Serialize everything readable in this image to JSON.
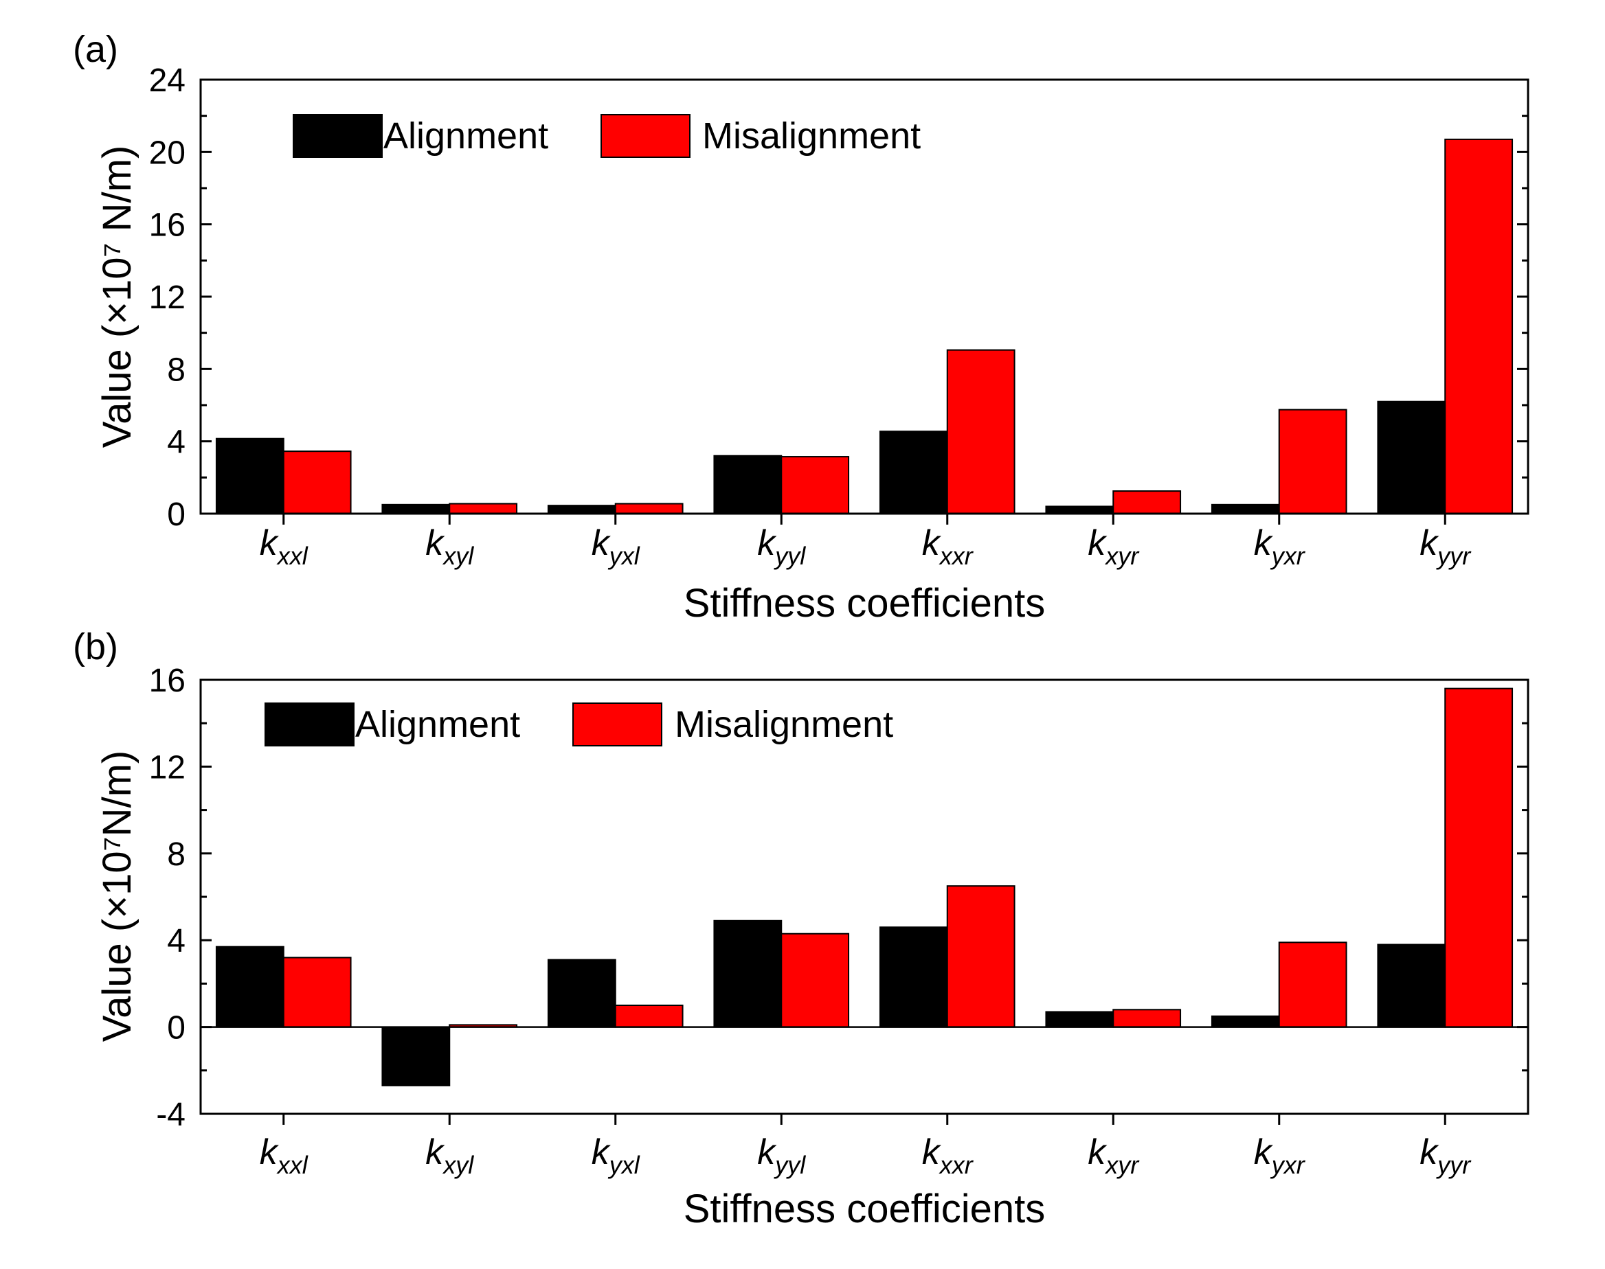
{
  "colors": {
    "alignment": "#000000",
    "misalignment": "#ff0000",
    "axis": "#000000"
  },
  "chart_data": [
    {
      "type": "bar",
      "panel_label": "(a)",
      "title": "",
      "xlabel": "Stiffness coefficients",
      "ylabel": "Value (×10⁷ N/m)",
      "categories": [
        {
          "base": "k",
          "sub": "xxl"
        },
        {
          "base": "k",
          "sub": "xyl"
        },
        {
          "base": "k",
          "sub": "yxl"
        },
        {
          "base": "k",
          "sub": "yyl"
        },
        {
          "base": "k",
          "sub": "xxr"
        },
        {
          "base": "k",
          "sub": "xyr"
        },
        {
          "base": "k",
          "sub": "yxr"
        },
        {
          "base": "k",
          "sub": "yyr"
        }
      ],
      "series": [
        {
          "name": "Alignment",
          "color": "#000000",
          "values": [
            4.15,
            0.5,
            0.45,
            3.2,
            4.55,
            0.4,
            0.5,
            6.2
          ]
        },
        {
          "name": "Misalignment",
          "color": "#ff0000",
          "values": [
            3.45,
            0.55,
            0.55,
            3.15,
            9.05,
            1.25,
            5.75,
            20.7
          ]
        }
      ],
      "ylim": [
        0,
        24
      ],
      "yticks": [
        0,
        4,
        8,
        12,
        16,
        20,
        24
      ],
      "ytick_labels": [
        "0",
        "4",
        "8",
        "12",
        "16",
        "20",
        "24"
      ],
      "legend": "top-left",
      "grid": false
    },
    {
      "type": "bar",
      "panel_label": "(b)",
      "title": "",
      "xlabel": "Stiffness coefficients",
      "ylabel": "Value (×10⁷N/m)",
      "categories": [
        {
          "base": "k",
          "sub": "xxl"
        },
        {
          "base": "k",
          "sub": "xyl"
        },
        {
          "base": "k",
          "sub": "yxl"
        },
        {
          "base": "k",
          "sub": "yyl"
        },
        {
          "base": "k",
          "sub": "xxr"
        },
        {
          "base": "k",
          "sub": "xyr"
        },
        {
          "base": "k",
          "sub": "yxr"
        },
        {
          "base": "k",
          "sub": "yyr"
        }
      ],
      "series": [
        {
          "name": "Alignment",
          "color": "#000000",
          "values": [
            3.7,
            -2.7,
            3.1,
            4.9,
            4.6,
            0.7,
            0.5,
            3.8
          ]
        },
        {
          "name": "Misalignment",
          "color": "#ff0000",
          "values": [
            3.2,
            0.1,
            1.0,
            4.3,
            6.5,
            0.8,
            3.9,
            15.6
          ]
        }
      ],
      "ylim": [
        -4,
        16
      ],
      "yticks": [
        -4,
        0,
        4,
        8,
        12,
        16
      ],
      "ytick_labels": [
        "-4",
        "0",
        "4",
        "8",
        "12",
        "16"
      ],
      "legend": "top-left",
      "grid": false
    }
  ]
}
